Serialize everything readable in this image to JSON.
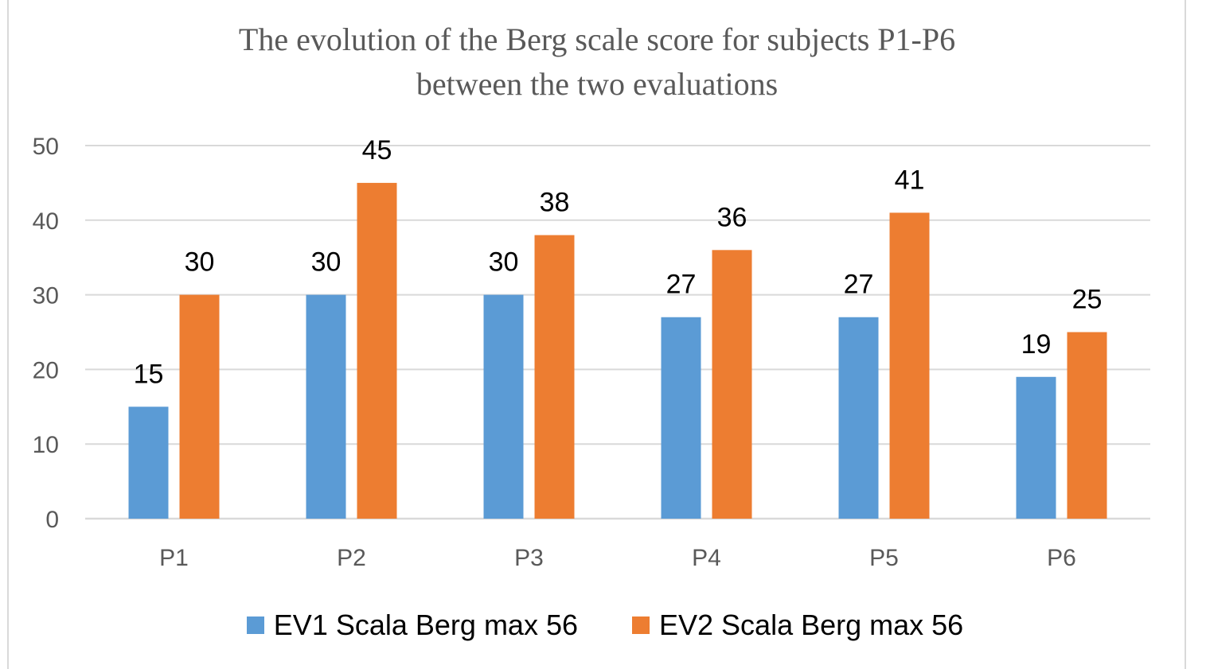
{
  "chart_data": {
    "type": "bar",
    "title_lines": [
      "The evolution of the Berg scale score for subjects P1-P6",
      "between the two evaluations"
    ],
    "categories": [
      "P1",
      "P2",
      "P3",
      "P4",
      "P5",
      "P6"
    ],
    "series": [
      {
        "name": "EV1 Scala Berg max 56",
        "values": [
          15,
          30,
          30,
          27,
          27,
          19
        ],
        "color": "#5b9bd5"
      },
      {
        "name": "EV2 Scala Berg max 56",
        "values": [
          30,
          45,
          38,
          36,
          41,
          25
        ],
        "color": "#ed7d31"
      }
    ],
    "ylim": [
      0,
      50
    ],
    "yticks": [
      0,
      10,
      20,
      30,
      40,
      50
    ],
    "grid": true,
    "gridColor": "#d9d9d9",
    "data_labels": true,
    "legend_position": "bottom"
  }
}
